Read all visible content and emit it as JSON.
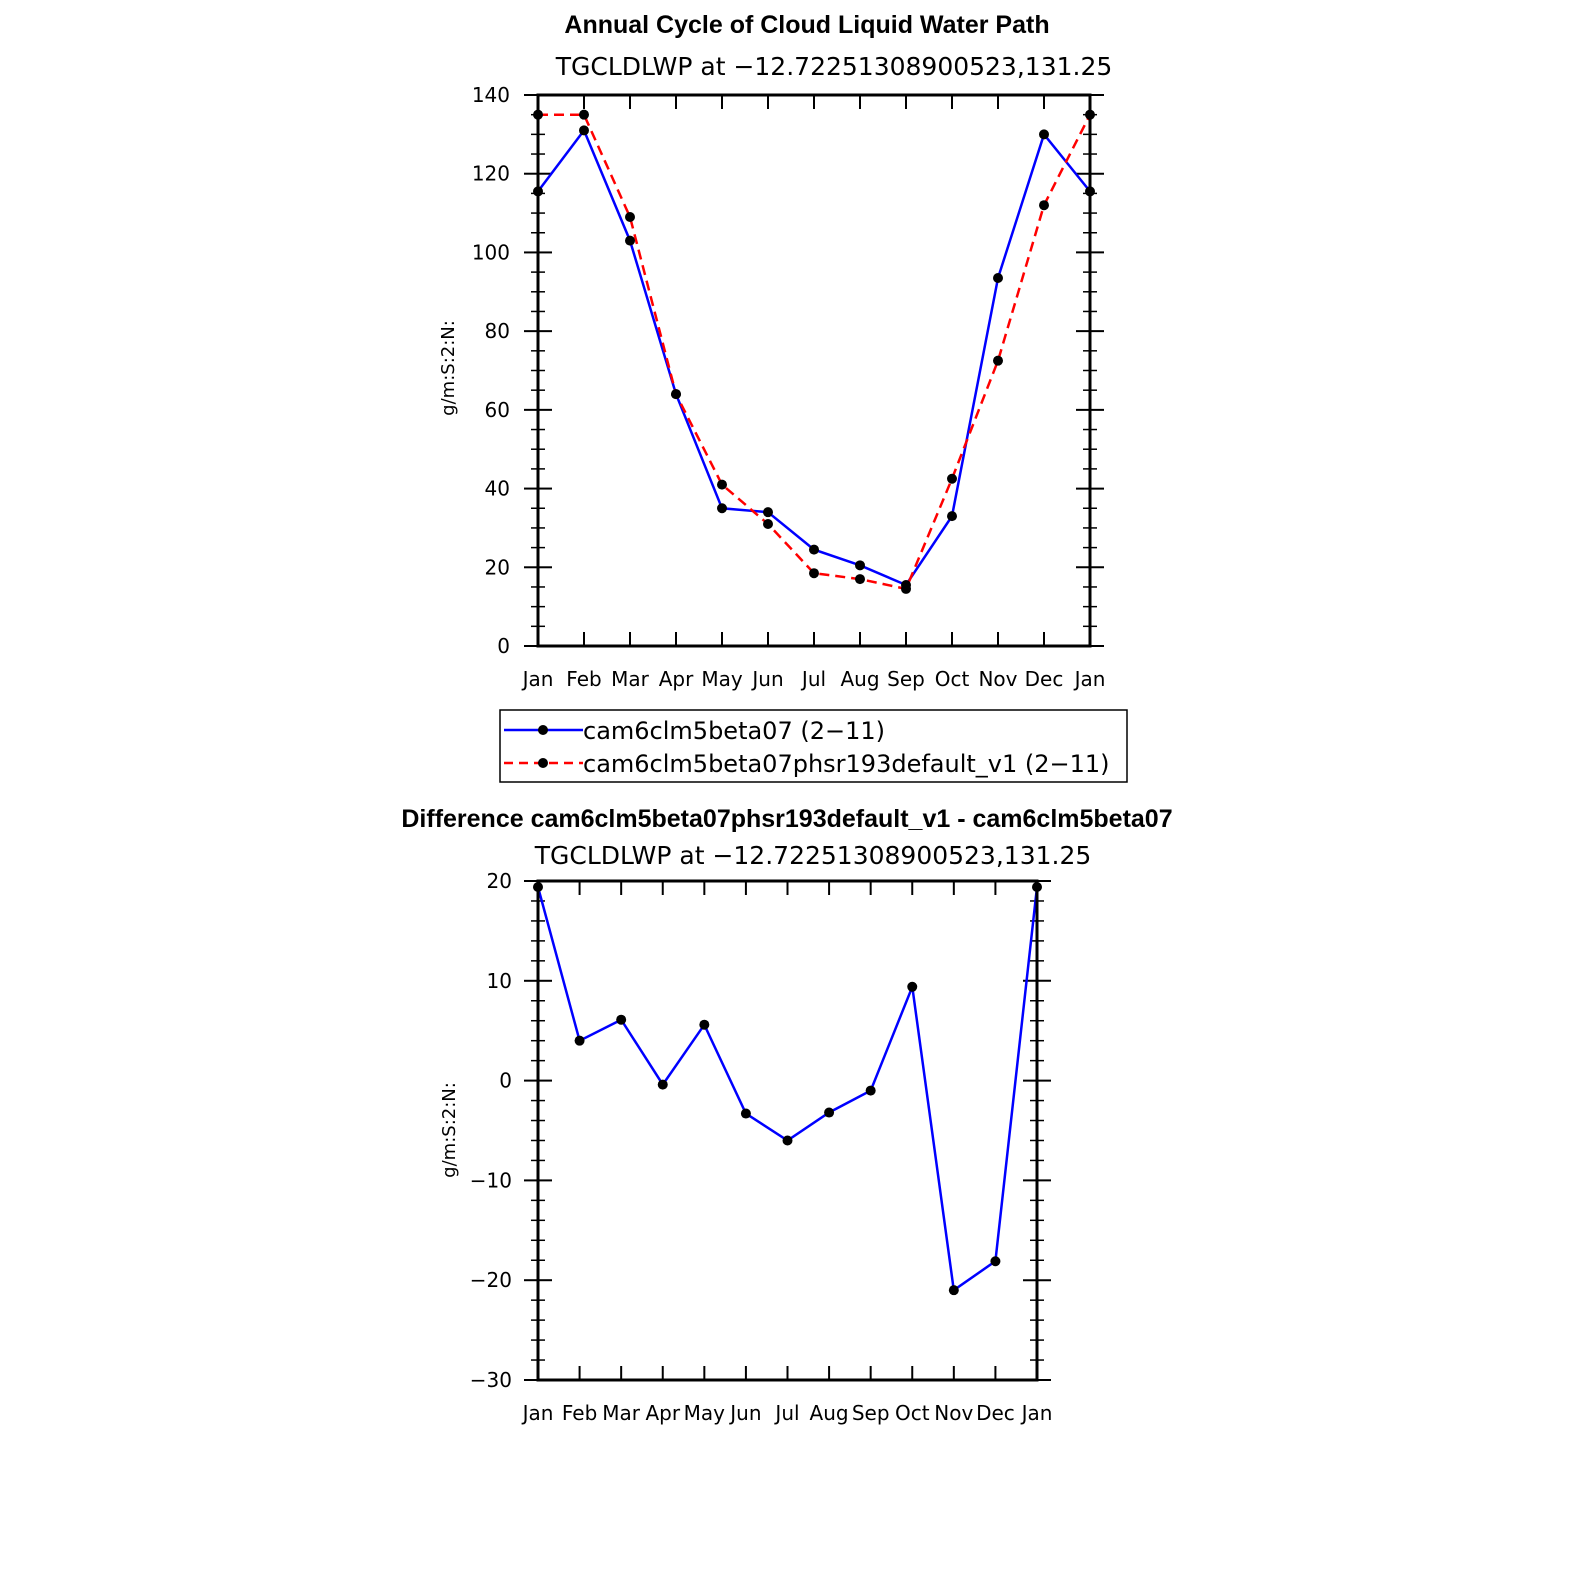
{
  "chart_data": [
    {
      "type": "line",
      "title": "Annual Cycle of Cloud Liquid Water Path",
      "subtitle": "TGCLDLWP at −12.72251308900523,131.25",
      "ylabel": "g/m:S:2:N:",
      "xlabel": "",
      "categories": [
        "Jan",
        "Feb",
        "Mar",
        "Apr",
        "May",
        "Jun",
        "Jul",
        "Aug",
        "Sep",
        "Oct",
        "Nov",
        "Dec",
        "Jan"
      ],
      "ylim": [
        0,
        140
      ],
      "yticks": [
        0,
        20,
        40,
        60,
        80,
        100,
        120,
        140
      ],
      "ytick_labels": [
        "0",
        "20",
        "40",
        "60",
        "80",
        "100",
        "120",
        "140"
      ],
      "series": [
        {
          "name": "cam6clm5beta07 (2−11)",
          "color": "#0000ff",
          "dash": "solid",
          "values": [
            115.5,
            131,
            103,
            64,
            35,
            34,
            24.5,
            20.5,
            15.5,
            33,
            93.5,
            130,
            115.5
          ]
        },
        {
          "name": "cam6clm5beta07phsr193default_v1 (2−11)",
          "color": "#ff0000",
          "dash": "dashed",
          "values": [
            135,
            135,
            109,
            64,
            41,
            31,
            18.5,
            17,
            14.5,
            42.5,
            72.5,
            112,
            135
          ]
        }
      ],
      "legend_position": "bottom"
    },
    {
      "type": "line",
      "title": "Difference cam6clm5beta07phsr193default_v1 - cam6clm5beta07",
      "subtitle": "TGCLDLWP at −12.72251308900523,131.25",
      "ylabel": "g/m:S:2:N:",
      "xlabel": "",
      "categories": [
        "Jan",
        "Feb",
        "Mar",
        "Apr",
        "May",
        "Jun",
        "Jul",
        "Aug",
        "Sep",
        "Oct",
        "Nov",
        "Dec",
        "Jan"
      ],
      "ylim": [
        -30,
        20
      ],
      "yticks": [
        -30,
        -20,
        -10,
        0,
        10,
        20
      ],
      "ytick_labels": [
        "−30",
        "−20",
        "−10",
        "0",
        "10",
        "20"
      ],
      "series": [
        {
          "name": "Difference",
          "color": "#0000ff",
          "dash": "solid",
          "values": [
            19.4,
            4,
            6.1,
            -0.4,
            5.6,
            -3.3,
            -6,
            -3.2,
            -1,
            9.4,
            -21,
            -18.1,
            19.4
          ]
        }
      ]
    }
  ]
}
